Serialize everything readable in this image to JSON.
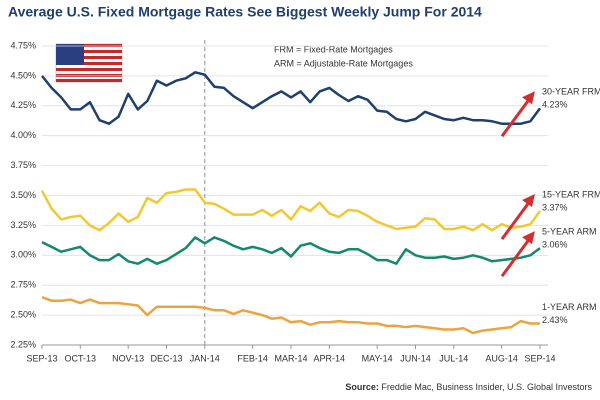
{
  "chart_data": {
    "type": "line",
    "title": "Average U.S. Fixed Mortgage Rates See Biggest Weekly Jump For 2014",
    "annotations": [
      "FRM = Fixed-Rate Mortgages",
      "ARM = Adjustable-Rate Mortgages"
    ],
    "source_label": "Source:",
    "source": "Freddie Mac, Business Insider, U.S. Global Investors",
    "categories": [
      "SEP-13",
      null,
      null,
      null,
      "OCT-13",
      null,
      null,
      null,
      null,
      "NOV-13",
      null,
      null,
      null,
      "DEC-13",
      null,
      null,
      null,
      "JAN-14",
      null,
      null,
      null,
      null,
      "FEB-14",
      null,
      null,
      null,
      "MAR-14",
      null,
      null,
      null,
      "APR-14",
      null,
      null,
      null,
      null,
      "MAY-14",
      null,
      null,
      null,
      "JUN-14",
      null,
      null,
      null,
      "JUL-14",
      null,
      null,
      null,
      null,
      "AUG-14",
      null,
      null,
      null,
      "SEP-14"
    ],
    "ylim": [
      2.25,
      4.75
    ],
    "yticks": [
      {
        "value": 2.25,
        "label": "2.25%"
      },
      {
        "value": 2.5,
        "label": "2.50%"
      },
      {
        "value": 2.75,
        "label": "2.75%"
      },
      {
        "value": 3,
        "label": "3.00%"
      },
      {
        "value": 3.25,
        "label": "3.25%"
      },
      {
        "value": 3.5,
        "label": "3.50%"
      },
      {
        "value": 3.75,
        "label": "3.75%"
      },
      {
        "value": 4,
        "label": "4.00%"
      },
      {
        "value": 4.25,
        "label": "4.25%"
      },
      {
        "value": 4.5,
        "label": "4.50%"
      },
      {
        "value": 4.75,
        "label": "4.75%"
      }
    ],
    "grid": true,
    "series": [
      {
        "name": "30-YEAR FRM",
        "color": "#1f3f6e",
        "values": [
          4.5,
          4.4,
          4.32,
          4.22,
          4.22,
          4.28,
          4.13,
          4.1,
          4.16,
          4.35,
          4.22,
          4.29,
          4.46,
          4.42,
          4.46,
          4.48,
          4.53,
          4.51,
          4.41,
          4.4,
          4.33,
          4.28,
          4.23,
          4.28,
          4.33,
          4.37,
          4.32,
          4.37,
          4.28,
          4.37,
          4.4,
          4.34,
          4.29,
          4.33,
          4.3,
          4.21,
          4.2,
          4.14,
          4.12,
          4.14,
          4.2,
          4.17,
          4.14,
          4.13,
          4.15,
          4.13,
          4.13,
          4.12,
          4.1,
          4.1,
          4.1,
          4.12,
          4.23
        ],
        "value_labels": {
          "52": "4.23%"
        }
      },
      {
        "name": "15-YEAR FRM",
        "color": "#f2c830",
        "values": [
          3.54,
          3.39,
          3.3,
          3.32,
          3.33,
          3.25,
          3.21,
          3.27,
          3.35,
          3.28,
          3.32,
          3.48,
          3.44,
          3.52,
          3.53,
          3.55,
          3.55,
          3.44,
          3.43,
          3.39,
          3.34,
          3.34,
          3.34,
          3.38,
          3.33,
          3.38,
          3.3,
          3.41,
          3.37,
          3.44,
          3.35,
          3.32,
          3.38,
          3.37,
          3.33,
          3.28,
          3.25,
          3.22,
          3.23,
          3.24,
          3.31,
          3.3,
          3.22,
          3.22,
          3.24,
          3.21,
          3.26,
          3.21,
          3.26,
          3.23,
          3.24,
          3.26,
          3.37
        ],
        "value_labels": {
          "52": "3.37%"
        }
      },
      {
        "name": "5-YEAR ARM",
        "color": "#14896f",
        "values": [
          3.11,
          3.07,
          3.03,
          3.05,
          3.07,
          3.0,
          2.96,
          2.96,
          3.01,
          2.95,
          2.93,
          2.97,
          2.93,
          2.96,
          3.01,
          3.06,
          3.15,
          3.1,
          3.15,
          3.12,
          3.08,
          3.05,
          3.07,
          3.05,
          3.02,
          3.06,
          2.99,
          3.08,
          3.1,
          3.06,
          3.03,
          3.02,
          3.05,
          3.05,
          3.01,
          2.96,
          2.96,
          2.93,
          3.05,
          3.0,
          2.98,
          2.98,
          2.99,
          2.97,
          2.98,
          3.0,
          2.98,
          2.95,
          2.96,
          2.97,
          2.98,
          3.0,
          3.06
        ],
        "value_labels": {
          "52": "3.06%"
        }
      },
      {
        "name": "1-YEAR ARM",
        "color": "#eba43f",
        "values": [
          2.65,
          2.62,
          2.62,
          2.63,
          2.6,
          2.63,
          2.6,
          2.6,
          2.6,
          2.59,
          2.58,
          2.5,
          2.57,
          2.57,
          2.57,
          2.57,
          2.57,
          2.56,
          2.54,
          2.54,
          2.51,
          2.54,
          2.52,
          2.5,
          2.47,
          2.48,
          2.44,
          2.45,
          2.42,
          2.44,
          2.44,
          2.45,
          2.44,
          2.44,
          2.43,
          2.43,
          2.41,
          2.41,
          2.4,
          2.41,
          2.4,
          2.39,
          2.38,
          2.38,
          2.39,
          2.35,
          2.37,
          2.38,
          2.39,
          2.4,
          2.45,
          2.43,
          2.43
        ],
        "value_labels": {
          "52": "2.43%"
        }
      }
    ]
  }
}
